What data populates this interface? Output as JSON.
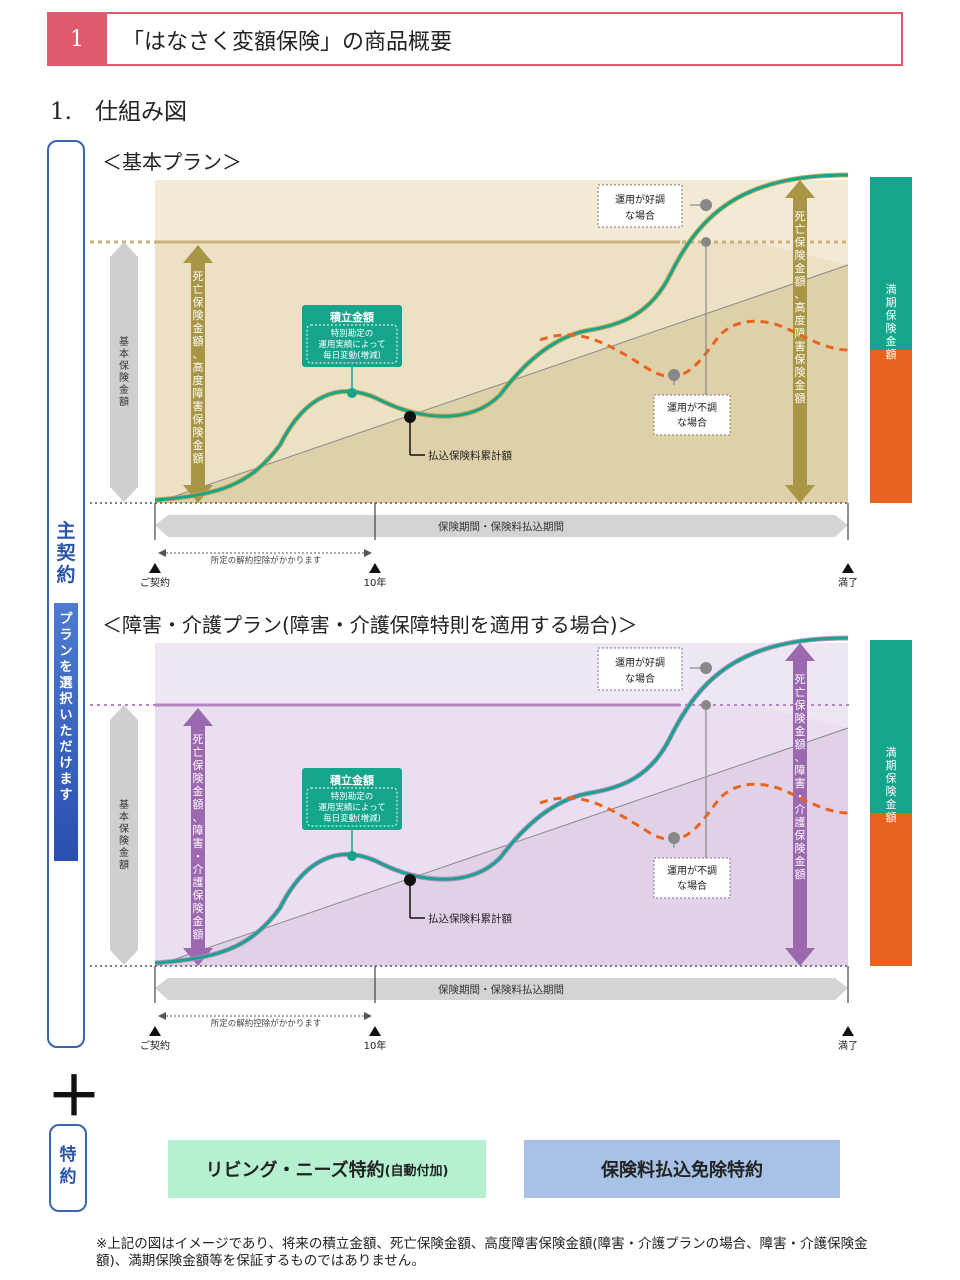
{
  "header": {
    "number": "1",
    "title": "「はなさく変額保険」の商品概要"
  },
  "section_title": "1.　仕組み図",
  "side": {
    "main_contract": "主契約",
    "plan_select": "プランを選択いただけます"
  },
  "plans": [
    {
      "title": "＜基本プラン＞",
      "basic_amount": "基本保険金額",
      "death_arrow": "死亡保険金額、高度障害保険金額",
      "right_arrow": "死亡保険金額、高度障害保険金額",
      "maturity": "満期保険金額",
      "accumulated": "積立金額",
      "accumulated_note": [
        "特別勘定の",
        "運用実績によって",
        "毎日変動(増減)"
      ],
      "good": [
        "運用が好調",
        "な場合"
      ],
      "bad": [
        "運用が不調",
        "な場合"
      ],
      "premium_total": "払込保険料累計額",
      "period": "保険期間・保険料払込期間",
      "surrender": "所定の解約控除がかかります",
      "start": "ご契約",
      "year10": "10年",
      "end": "満了",
      "colors": {
        "bg_light": "#f3ead6",
        "bg_dark": "#d4c79c",
        "line": "#c9b37a",
        "arrow": "#a89546"
      }
    },
    {
      "title": "＜障害・介護プラン(障害・介護保障特則を適用する場合)＞",
      "basic_amount": "基本保険金額",
      "death_arrow": "死亡保険金額、障害・介護保険金額",
      "right_arrow": "死亡保険金額、障害・介護保険金額",
      "maturity": "満期保険金額",
      "accumulated": "積立金額",
      "accumulated_note": [
        "特別勘定の",
        "運用実績によって",
        "毎日変動(増減)"
      ],
      "good": [
        "運用が好調",
        "な場合"
      ],
      "bad": [
        "運用が不調",
        "な場合"
      ],
      "premium_total": "払込保険料累計額",
      "period": "保険期間・保険料払込期間",
      "surrender": "所定の解約控除がかかります",
      "start": "ご契約",
      "year10": "10年",
      "end": "満了",
      "colors": {
        "bg_light": "#efe6f3",
        "bg_dark": "#dcc7e1",
        "line": "#b487c2",
        "arrow": "#9c68b0"
      }
    }
  ],
  "riders": {
    "label": "特約",
    "rider1": "リビング・ニーズ特約",
    "rider1_note": "(自動付加)",
    "rider2": "保険料払込免除特約"
  },
  "footnote": "※上記の図はイメージであり、将来の積立金額、死亡保険金額、高度障害保険金額(障害・介護プランの場合、障害・介護保険金額)、満期保険金額等を保証するものではありません。",
  "accent_colors": {
    "header": "#e05a6d",
    "teal": "#14a58c",
    "orange": "#e8641e",
    "blue": "#2b55a8"
  }
}
